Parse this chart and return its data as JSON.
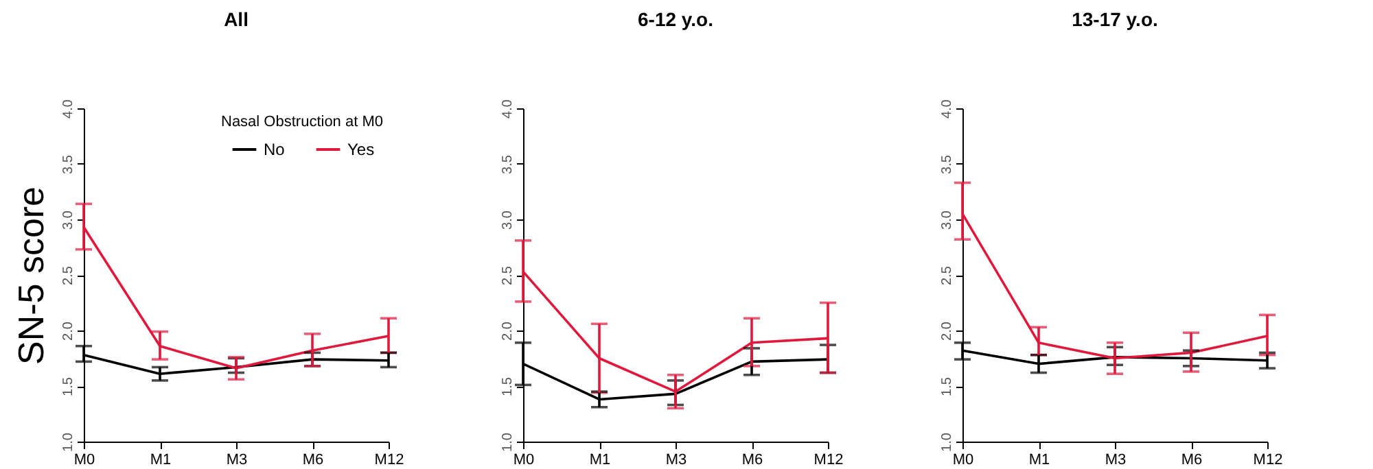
{
  "chart_data": [
    {
      "type": "line",
      "title": "All",
      "ylabel": "SN-5 score",
      "legend_title": "Nasal Obstruction at M0",
      "legend": "top right",
      "grid": false,
      "marker": "none",
      "line_style": "solid",
      "categories": [
        "M0",
        "M1",
        "M3",
        "M6",
        "M12"
      ],
      "ylim": [
        1,
        4
      ],
      "yticks": [
        {
          "value": 1,
          "label": "1.0"
        },
        {
          "value": 1.5,
          "label": "1.5"
        },
        {
          "value": 2,
          "label": "2.0"
        },
        {
          "value": 2.5,
          "label": "2.5"
        },
        {
          "value": 3,
          "label": "3.0"
        },
        {
          "value": 3.5,
          "label": "3.5"
        },
        {
          "value": 4,
          "label": "4.0"
        }
      ],
      "series": [
        {
          "name": "No",
          "color": "#000000",
          "values": [
            1.78,
            1.61,
            1.67,
            1.74,
            1.73
          ],
          "errors": [
            [
              1.72,
              1.86
            ],
            [
              1.55,
              1.67
            ],
            [
              1.62,
              1.75
            ],
            [
              1.68,
              1.8
            ],
            [
              1.67,
              1.8
            ]
          ]
        },
        {
          "name": "Yes",
          "color": "#e0183c",
          "values": [
            2.93,
            1.86,
            1.66,
            1.82,
            1.95
          ],
          "errors": [
            [
              2.73,
              3.14
            ],
            [
              1.74,
              1.99
            ],
            [
              1.56,
              1.76
            ],
            [
              1.68,
              1.97
            ],
            [
              1.8,
              2.11
            ]
          ]
        }
      ]
    },
    {
      "type": "line",
      "title": "6-12 y.o.",
      "grid": false,
      "marker": "none",
      "line_style": "solid",
      "categories": [
        "M0",
        "M1",
        "M3",
        "M6",
        "M12"
      ],
      "ylim": [
        1,
        4
      ],
      "yticks": [
        {
          "value": 1,
          "label": "1.0"
        },
        {
          "value": 1.5,
          "label": "1.5"
        },
        {
          "value": 2,
          "label": "2.0"
        },
        {
          "value": 2.5,
          "label": "2.5"
        },
        {
          "value": 3,
          "label": "3.0"
        },
        {
          "value": 3.5,
          "label": "3.5"
        },
        {
          "value": 4,
          "label": "4.0"
        }
      ],
      "series": [
        {
          "color": "#000000",
          "values": [
            1.7,
            1.38,
            1.43,
            1.72,
            1.74
          ],
          "errors": [
            [
              1.51,
              1.89
            ],
            [
              1.31,
              1.45
            ],
            [
              1.33,
              1.55
            ],
            [
              1.6,
              1.84
            ],
            [
              1.62,
              1.87
            ]
          ]
        },
        {
          "color": "#e0183c",
          "values": [
            2.53,
            1.75,
            1.45,
            1.89,
            1.93
          ],
          "errors": [
            [
              2.26,
              2.81
            ],
            [
              1.44,
              2.06
            ],
            [
              1.3,
              1.6
            ],
            [
              1.68,
              2.11
            ],
            [
              1.62,
              2.25
            ]
          ]
        }
      ]
    },
    {
      "type": "line",
      "title": "13-17 y.o.",
      "grid": false,
      "marker": "none",
      "line_style": "solid",
      "categories": [
        "M0",
        "M1",
        "M3",
        "M6",
        "M12"
      ],
      "ylim": [
        1,
        4
      ],
      "yticks": [
        {
          "value": 1,
          "label": "1.0"
        },
        {
          "value": 1.5,
          "label": "1.5"
        },
        {
          "value": 2,
          "label": "2.0"
        },
        {
          "value": 2.5,
          "label": "2.5"
        },
        {
          "value": 3,
          "label": "3.0"
        },
        {
          "value": 3.5,
          "label": "3.5"
        },
        {
          "value": 4,
          "label": "4.0"
        }
      ],
      "series": [
        {
          "color": "#000000",
          "values": [
            1.82,
            1.7,
            1.76,
            1.75,
            1.73
          ],
          "errors": [
            [
              1.74,
              1.89
            ],
            [
              1.62,
              1.78
            ],
            [
              1.69,
              1.85
            ],
            [
              1.68,
              1.82
            ],
            [
              1.66,
              1.8
            ]
          ]
        },
        {
          "color": "#e0183c",
          "values": [
            3.05,
            1.89,
            1.75,
            1.8,
            1.95
          ],
          "errors": [
            [
              2.82,
              3.33
            ],
            [
              1.78,
              2.03
            ],
            [
              1.61,
              1.89
            ],
            [
              1.63,
              1.98
            ],
            [
              1.78,
              2.14
            ]
          ]
        }
      ]
    }
  ]
}
